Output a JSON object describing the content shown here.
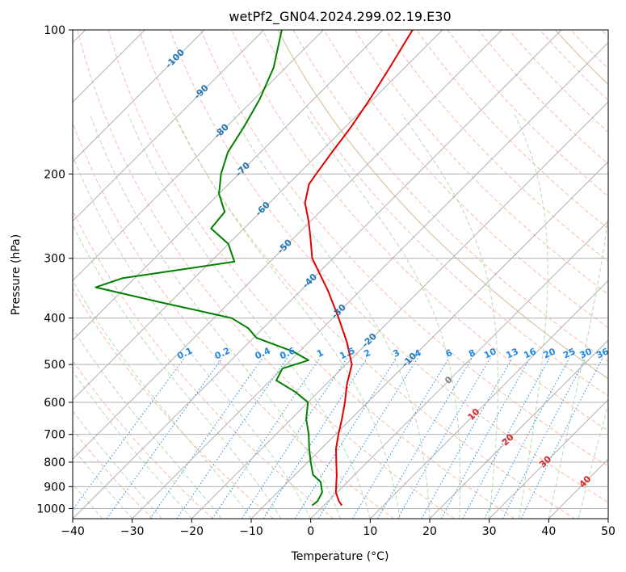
{
  "chart_data": {
    "type": "line",
    "title": "wetPf2_GN04.2024.299.02.19.E30",
    "xlabel": "Temperature (°C)",
    "ylabel": "Pressure (hPa)",
    "xlim": [
      -40,
      50
    ],
    "ylim": [
      1050,
      100
    ],
    "y_scale": "log",
    "x_ticks": [
      "−40",
      "−30",
      "−20",
      "−10",
      "0",
      "10",
      "20",
      "30",
      "40",
      "50"
    ],
    "y_ticks": [
      "1000",
      "900",
      "800",
      "700",
      "600",
      "500",
      "400",
      "300",
      "200",
      "100"
    ],
    "grid": true,
    "skew_angle_deg": 45,
    "series": [
      {
        "role": "temperature",
        "color": "#e00000",
        "points": [
          {
            "p": 985,
            "t": 3.0
          },
          {
            "p": 965,
            "t": 1.8
          },
          {
            "p": 925,
            "t": -0.2
          },
          {
            "p": 850,
            "t": -3.0
          },
          {
            "p": 800,
            "t": -5.2
          },
          {
            "p": 750,
            "t": -7.5
          },
          {
            "p": 700,
            "t": -9.5
          },
          {
            "p": 650,
            "t": -11.5
          },
          {
            "p": 600,
            "t": -13.8
          },
          {
            "p": 550,
            "t": -16.5
          },
          {
            "p": 500,
            "t": -19.0
          },
          {
            "p": 450,
            "t": -23.5
          },
          {
            "p": 400,
            "t": -29.0
          },
          {
            "p": 350,
            "t": -35.5
          },
          {
            "p": 300,
            "t": -43.5
          },
          {
            "p": 270,
            "t": -47.5
          },
          {
            "p": 250,
            "t": -50.5
          },
          {
            "p": 230,
            "t": -54.0
          },
          {
            "p": 210,
            "t": -56.5
          },
          {
            "p": 200,
            "t": -57.0
          },
          {
            "p": 180,
            "t": -58.0
          },
          {
            "p": 160,
            "t": -59.0
          },
          {
            "p": 140,
            "t": -60.5
          },
          {
            "p": 120,
            "t": -62.5
          },
          {
            "p": 100,
            "t": -65.0
          }
        ]
      },
      {
        "role": "dewpoint",
        "color": "#008000",
        "points": [
          {
            "p": 985,
            "t": -2.0
          },
          {
            "p": 965,
            "t": -1.8
          },
          {
            "p": 925,
            "t": -2.5
          },
          {
            "p": 880,
            "t": -4.5
          },
          {
            "p": 850,
            "t": -7.0
          },
          {
            "p": 800,
            "t": -9.5
          },
          {
            "p": 750,
            "t": -12.0
          },
          {
            "p": 700,
            "t": -14.5
          },
          {
            "p": 650,
            "t": -17.5
          },
          {
            "p": 600,
            "t": -20.0
          },
          {
            "p": 570,
            "t": -24.0
          },
          {
            "p": 540,
            "t": -29.0
          },
          {
            "p": 510,
            "t": -30.0
          },
          {
            "p": 490,
            "t": -27.0
          },
          {
            "p": 470,
            "t": -31.0
          },
          {
            "p": 440,
            "t": -39.5
          },
          {
            "p": 420,
            "t": -42.5
          },
          {
            "p": 400,
            "t": -47.0
          },
          {
            "p": 370,
            "t": -62.0
          },
          {
            "p": 345,
            "t": -75.0
          },
          {
            "p": 330,
            "t": -72.0
          },
          {
            "p": 305,
            "t": -56.0
          },
          {
            "p": 280,
            "t": -60.0
          },
          {
            "p": 260,
            "t": -65.5
          },
          {
            "p": 240,
            "t": -66.0
          },
          {
            "p": 220,
            "t": -70.0
          },
          {
            "p": 200,
            "t": -73.0
          },
          {
            "p": 180,
            "t": -75.5
          },
          {
            "p": 160,
            "t": -77.0
          },
          {
            "p": 140,
            "t": -79.0
          },
          {
            "p": 120,
            "t": -82.0
          },
          {
            "p": 100,
            "t": -87.0
          }
        ]
      }
    ],
    "isotherm_labels": [
      "-100",
      "-90",
      "-80",
      "-70",
      "-60",
      "-50",
      "-40",
      "-30",
      "-20",
      "-10",
      "0",
      "10",
      "20",
      "30",
      "40"
    ],
    "mixing_ratio_labels": [
      "0.1",
      "0.2",
      "0.4",
      "0.6",
      "1",
      "1.5",
      "2",
      "3",
      "4",
      "6",
      "8",
      "10",
      "13",
      "16",
      "20",
      "25",
      "30",
      "36"
    ],
    "colors": {
      "isotherm_cold": "#1f77b4",
      "isotherm_zero": "#808080",
      "isotherm_warm": "#d62728",
      "mixing_ratio": "#1e88e5",
      "dry_adiabat": "#f4a582",
      "moist_adiabat": "#a6d6a0",
      "background_curve": "#d2b48c",
      "grid": "#b0b0b0"
    }
  }
}
